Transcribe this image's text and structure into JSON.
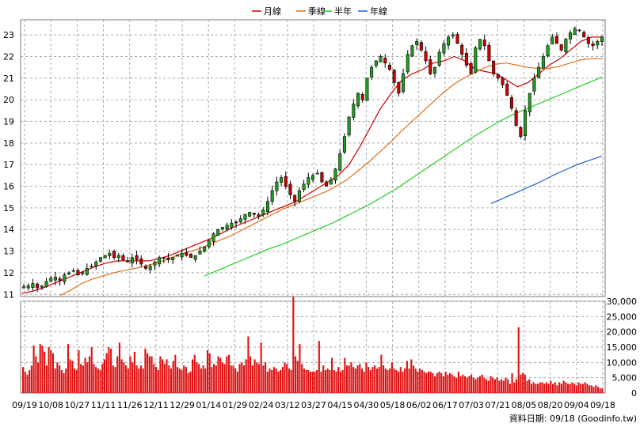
{
  "legend": [
    {
      "label": "月線",
      "color": "#d00000"
    },
    {
      "label": "季線",
      "color": "#e0701a"
    },
    {
      "label": "半年",
      "color": "#22cc22"
    },
    {
      "label": "年線",
      "color": "#1f5fc8"
    }
  ],
  "footer": "資料日期: 09/18 (Goodinfo.tw)",
  "chart_data": [
    {
      "type": "candlestick",
      "ylim": [
        10.9,
        23.7
      ],
      "y_ticks": [
        11,
        12,
        13,
        14,
        15,
        16,
        17,
        18,
        19,
        20,
        21,
        22,
        23
      ],
      "x_ticks": [
        "09/19",
        "10/08",
        "10/27",
        "11/11",
        "11/26",
        "12/11",
        "12/29",
        "01/14",
        "01/29",
        "02/24",
        "03/12",
        "03/27",
        "04/15",
        "04/30",
        "05/18",
        "06/02",
        "06/17",
        "07/03",
        "07/21",
        "08/05",
        "08/20",
        "09/04",
        "09/18"
      ],
      "up_color": "#1fa01f",
      "down_color": "#d00000",
      "close_approx": [
        11.35,
        11.4,
        11.5,
        11.3,
        11.4,
        11.6,
        11.75,
        11.8,
        11.65,
        11.9,
        12.0,
        12.1,
        11.9,
        12.0,
        12.2,
        12.3,
        12.5,
        12.7,
        12.8,
        12.9,
        12.7,
        12.8,
        12.6,
        12.5,
        12.7,
        12.6,
        12.4,
        12.2,
        12.3,
        12.5,
        12.7,
        12.7,
        12.6,
        12.7,
        12.8,
        12.9,
        12.8,
        12.7,
        12.8,
        13.0,
        13.2,
        13.5,
        13.8,
        14.0,
        14.1,
        14.2,
        14.3,
        14.3,
        14.5,
        14.7,
        14.8,
        14.7,
        14.6,
        14.9,
        15.3,
        15.8,
        16.2,
        16.4,
        16.0,
        15.6,
        15.3,
        15.8,
        16.1,
        16.4,
        16.5,
        16.6,
        16.2,
        16.0,
        16.3,
        16.8,
        17.5,
        18.3,
        19.2,
        19.8,
        20.3,
        20.0,
        21.0,
        21.5,
        21.8,
        22.0,
        21.7,
        21.4,
        20.8,
        20.3,
        21.2,
        22.1,
        22.5,
        22.7,
        22.3,
        21.8,
        21.2,
        21.5,
        22.2,
        22.6,
        22.9,
        23.0,
        22.6,
        22.1,
        21.6,
        21.2,
        22.4,
        22.8,
        22.5,
        21.8,
        21.2,
        21.0,
        20.7,
        20.2,
        19.6,
        18.8,
        18.3,
        19.5,
        20.3,
        21.0,
        21.5,
        22.0,
        22.5,
        22.9,
        22.6,
        22.3,
        22.8,
        23.1,
        23.3,
        23.2,
        22.9,
        22.6,
        22.5,
        22.7,
        22.9
      ],
      "ma_month_approx": [
        11.05,
        11.15,
        11.3,
        11.5,
        11.7,
        11.9,
        12.1,
        12.3,
        12.45,
        12.55,
        12.55,
        12.55,
        12.55,
        12.65,
        12.8,
        13.0,
        13.2,
        13.4,
        13.6,
        13.85,
        14.1,
        14.3,
        14.5,
        14.7,
        14.9,
        15.1,
        15.3,
        15.6,
        15.9,
        16.2,
        16.5,
        17.0,
        17.8,
        18.7,
        19.6,
        20.3,
        20.9,
        21.2,
        21.4,
        21.7,
        21.8,
        22.0,
        21.8,
        21.4,
        21.3,
        21.2,
        20.9,
        20.6,
        20.8,
        21.2,
        21.6,
        21.9,
        22.3,
        22.7,
        22.9,
        22.9
      ],
      "ma_quarter_approx": [
        10.95,
        11.2,
        11.5,
        11.7,
        11.85,
        12.0,
        12.1,
        12.2,
        12.3,
        12.45,
        12.6,
        12.8,
        12.95,
        13.1,
        13.3,
        13.5,
        13.7,
        13.95,
        14.2,
        14.45,
        14.7,
        14.95,
        15.15,
        15.35,
        15.55,
        15.75,
        16.0,
        16.3,
        16.7,
        17.1,
        17.55,
        18.0,
        18.5,
        18.95,
        19.4,
        19.85,
        20.3,
        20.7,
        21.0,
        21.25,
        21.5,
        21.65,
        21.7,
        21.6,
        21.5,
        21.45,
        21.45,
        21.55,
        21.7,
        21.85,
        21.9,
        21.9
      ],
      "ma_halfyear_approx": [
        11.85,
        12.1,
        12.35,
        12.6,
        12.85,
        13.1,
        13.3,
        13.55,
        13.8,
        14.05,
        14.3,
        14.6,
        14.9,
        15.2,
        15.55,
        15.9,
        16.3,
        16.7,
        17.1,
        17.5,
        17.9,
        18.3,
        18.65,
        19.0,
        19.3,
        19.55,
        19.8,
        20.05,
        20.3,
        20.55,
        20.8,
        21.05
      ],
      "ma_year_approx": [
        15.2,
        15.45,
        15.7,
        15.95,
        16.2,
        16.5,
        16.75,
        17.0,
        17.2,
        17.4
      ]
    },
    {
      "type": "bar",
      "ylim": [
        0,
        30000
      ],
      "y_ticks": [
        0,
        5000,
        10000,
        15000,
        20000,
        25000,
        30000
      ],
      "y_tick_labels": [
        "0",
        "5,000",
        "10,000",
        "15,000",
        "20,000",
        "25,000",
        "30,000"
      ],
      "bar_color": "#e01010",
      "peaks_approx": [
        {
          "near": "02/24",
          "value": 31500
        },
        {
          "near": "07/21",
          "value": 21500
        },
        {
          "near": "10/08",
          "value": 16000
        },
        {
          "near": "01/29",
          "value": 18500
        }
      ],
      "values_approx": [
        8500,
        7000,
        6000,
        7500,
        9000,
        15500,
        12000,
        10000,
        16000,
        15500,
        13500,
        9000,
        15000,
        14000,
        13000,
        8000,
        10000,
        9000,
        7500,
        6500,
        8000,
        16000,
        11000,
        10500,
        8000,
        7500,
        14000,
        9500,
        9000,
        11500,
        10000,
        12000,
        15000,
        9500,
        8500,
        8000,
        7500,
        9500,
        11000,
        13000,
        15000,
        14500,
        9000,
        8500,
        12000,
        16500,
        11000,
        10000,
        9000,
        8000,
        12000,
        10000,
        13500,
        9000,
        8000,
        9000,
        8000,
        14500,
        13000,
        12000,
        12000,
        9500,
        8500,
        7500,
        12000,
        11000,
        9500,
        11000,
        9000,
        8000,
        10500,
        12500,
        8500,
        8000,
        7500,
        9000,
        8500,
        6500,
        7000,
        11000,
        12500,
        10000,
        9500,
        8000,
        9000,
        8000,
        14000,
        13000,
        8500,
        9500,
        9000,
        12000,
        11500,
        10000,
        9500,
        12000,
        12500,
        9000,
        9000,
        8000,
        7000,
        9500,
        10000,
        9000,
        11000,
        18500,
        12000,
        9000,
        11000,
        10000,
        9500,
        16500,
        9000,
        10000,
        7000,
        8000,
        7500,
        8500,
        8000,
        7000,
        7500,
        8500,
        10000,
        9500,
        8000,
        7500,
        31500,
        12000,
        10500,
        16000,
        9500,
        8000,
        7500,
        7500,
        7000,
        7000,
        7000,
        7500,
        17000,
        7000,
        9000,
        7500,
        8000,
        7500,
        11500,
        7500,
        7000,
        8500,
        7000,
        7500,
        11500,
        9000,
        9000,
        10000,
        8500,
        8000,
        9000,
        9500,
        8000,
        7000,
        10000,
        8500,
        7500,
        8500,
        9000,
        8000,
        8500,
        12500,
        9000,
        8000,
        7500,
        8000,
        10000,
        8000,
        7500,
        7000,
        8500,
        7000,
        8000,
        10500,
        8000,
        11000,
        9000,
        8000,
        7000,
        8000,
        7500,
        7000,
        6500,
        7000,
        7000,
        6500,
        5500,
        6500,
        7000,
        6500,
        5500,
        7000,
        6000,
        6500,
        6000,
        5500,
        5000,
        7000,
        5500,
        6000,
        5500,
        5000,
        5500,
        6000,
        5000,
        4500,
        5000,
        5500,
        6000,
        5000,
        4500,
        4000,
        5500,
        5000,
        4500,
        5000,
        4000,
        4500,
        4000,
        5000,
        4500,
        3000,
        6500,
        3500,
        4500,
        21500,
        6000,
        6500,
        6000,
        4000,
        4500,
        3000,
        3500,
        3000,
        3000,
        3500,
        3500,
        3000,
        3500,
        3000,
        4000,
        3000,
        3500,
        2500,
        3500,
        3000,
        4000,
        3500,
        3000,
        3000,
        3500,
        3000,
        2500,
        3500,
        3000,
        3000,
        3500,
        3000,
        2500,
        2500,
        2000,
        2500,
        2000,
        1500,
        1500
      ]
    }
  ]
}
